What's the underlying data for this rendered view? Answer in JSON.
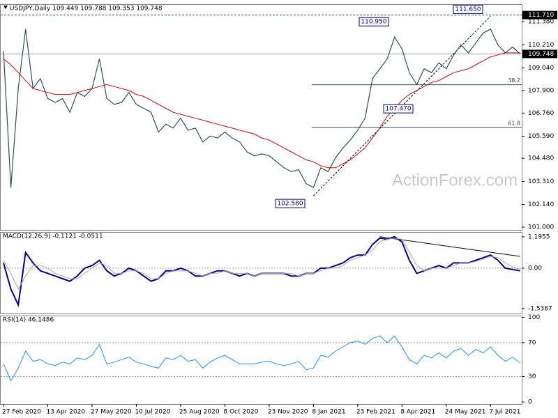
{
  "chart_data": [
    {
      "type": "line",
      "title": "USDJPY,Daily 109.449 109.788 109.353 109.748",
      "watermark": "ActionForex.com",
      "ylim": [
        100.86,
        112.26
      ],
      "yticks": [
        {
          "value": 101.0,
          "label": "101.000"
        },
        {
          "value": 102.14,
          "label": "102.140"
        },
        {
          "value": 103.31,
          "label": "103.310"
        },
        {
          "value": 104.48,
          "label": "104.480"
        },
        {
          "value": 105.59,
          "label": "105.590"
        },
        {
          "value": 106.76,
          "label": "106.760"
        },
        {
          "value": 107.9,
          "label": "107.900"
        },
        {
          "value": 109.04,
          "label": "109.040"
        },
        {
          "value": 110.21,
          "label": "110.210"
        },
        {
          "value": 111.38,
          "label": "111.380"
        }
      ],
      "series": [
        {
          "color": "#2f4f4f",
          "values": [
            109.9,
            103.0,
            108.0,
            111.0,
            108.0,
            108.5,
            107.5,
            107.3,
            107.5,
            106.8,
            107.8,
            107.6,
            108.0,
            109.5,
            107.5,
            107.2,
            107.3,
            107.8,
            107.2,
            107.0,
            106.8,
            105.8,
            106.2,
            106.0,
            106.5,
            105.9,
            106.0,
            105.3,
            105.6,
            105.5,
            105.8,
            105.5,
            105.3,
            104.8,
            104.6,
            104.7,
            104.6,
            104.3,
            104.0,
            103.8,
            103.9,
            103.2,
            103.0,
            104.0,
            103.8,
            104.5,
            105.0,
            105.4,
            105.9,
            106.5,
            108.5,
            109.0,
            109.5,
            110.6,
            110.0,
            108.8,
            108.2,
            109.0,
            108.8,
            109.3,
            109.0,
            109.7,
            110.2,
            109.8,
            110.3,
            110.8,
            111.0,
            110.2,
            109.8,
            110.1,
            109.75
          ]
        },
        {
          "color": "#e00000",
          "values": [
            109.5,
            109.2,
            108.8,
            108.4,
            108.0,
            107.9,
            107.8,
            107.7,
            107.7,
            107.7,
            107.8,
            107.9,
            108.0,
            108.1,
            108.2,
            108.1,
            108.0,
            107.9,
            107.7,
            107.6,
            107.4,
            107.2,
            107.0,
            106.8,
            106.7,
            106.6,
            106.5,
            106.4,
            106.3,
            106.2,
            106.1,
            106.0,
            105.9,
            105.8,
            105.7,
            105.5,
            105.4,
            105.2,
            105.0,
            104.8,
            104.6,
            104.4,
            104.3,
            104.1,
            104.0,
            104.0,
            104.2,
            104.4,
            104.7,
            105.0,
            105.5,
            106.0,
            106.6,
            107.0,
            107.4,
            107.7,
            107.9,
            108.1,
            108.3,
            108.4,
            108.6,
            108.8,
            108.9,
            109.0,
            109.2,
            109.4,
            109.6,
            109.7,
            109.8,
            109.8,
            109.8
          ]
        }
      ],
      "annotations": [
        {
          "value": 111.65,
          "label": "111.650"
        },
        {
          "value": 110.95,
          "label": "110.950"
        },
        {
          "value": 107.47,
          "label": "107.470"
        },
        {
          "value": 102.58,
          "label": "102.580"
        }
      ],
      "levels": [
        {
          "value": 108.19,
          "label": "38.2"
        },
        {
          "value": 106.04,
          "label": "61.8"
        }
      ],
      "price_marks": [
        {
          "value": 111.71,
          "label": "111.710"
        },
        {
          "value": 109.748,
          "label": "109.748"
        }
      ],
      "trendline": {
        "x": [
          42,
          66
        ],
        "values": [
          102.58,
          111.65
        ]
      }
    },
    {
      "type": "line",
      "title": "MACD(12,26,9) -0.1121 -0.0511",
      "ylim": [
        -1.73,
        1.38
      ],
      "yticks": [
        {
          "value": 1.1955,
          "label": "1.1955"
        },
        {
          "value": 0,
          "label": "0.00"
        },
        {
          "value": -1.5387,
          "label": "-1.5387"
        }
      ],
      "levels": [
        0
      ],
      "series": [
        {
          "color": "#00008b",
          "values": [
            0.2,
            -0.8,
            -1.4,
            0.6,
            0.2,
            -0.1,
            -0.2,
            -0.3,
            -0.4,
            -0.5,
            -0.3,
            0.0,
            0.1,
            0.3,
            -0.1,
            -0.3,
            -0.2,
            0.0,
            -0.1,
            -0.3,
            -0.5,
            -0.4,
            -0.1,
            -0.1,
            0.0,
            -0.1,
            -0.3,
            -0.3,
            -0.2,
            -0.1,
            -0.1,
            -0.2,
            -0.3,
            -0.2,
            -0.3,
            -0.2,
            -0.2,
            -0.2,
            -0.2,
            -0.3,
            -0.3,
            -0.2,
            -0.2,
            0.0,
            0.0,
            0.1,
            0.2,
            0.4,
            0.5,
            0.5,
            0.9,
            1.15,
            1.1,
            1.2,
            1.0,
            0.3,
            -0.2,
            -0.1,
            0.0,
            0.1,
            0.0,
            0.2,
            0.2,
            0.2,
            0.3,
            0.4,
            0.5,
            0.3,
            0.0,
            -0.05,
            -0.1
          ]
        },
        {
          "color": "#a9a9a9",
          "values": [
            0.3,
            -0.2,
            -0.8,
            -0.3,
            0.1,
            0.1,
            0.0,
            -0.2,
            -0.3,
            -0.4,
            -0.4,
            -0.2,
            0.0,
            0.2,
            0.1,
            -0.2,
            -0.2,
            -0.1,
            -0.1,
            -0.2,
            -0.4,
            -0.4,
            -0.2,
            -0.1,
            -0.1,
            -0.1,
            -0.2,
            -0.3,
            -0.2,
            -0.2,
            -0.1,
            -0.2,
            -0.2,
            -0.2,
            -0.3,
            -0.2,
            -0.2,
            -0.2,
            -0.2,
            -0.2,
            -0.3,
            -0.2,
            -0.2,
            -0.1,
            0.0,
            0.0,
            0.1,
            0.3,
            0.4,
            0.5,
            0.7,
            1.0,
            1.1,
            1.15,
            1.1,
            0.6,
            0.1,
            -0.1,
            0.0,
            0.0,
            0.0,
            0.1,
            0.2,
            0.2,
            0.25,
            0.35,
            0.45,
            0.4,
            0.2,
            0.05,
            -0.05
          ]
        }
      ],
      "trendline": {
        "x": [
          51,
          70
        ],
        "values": [
          1.2,
          0.45
        ]
      }
    },
    {
      "type": "line",
      "title": "RSI(14) 46.1486",
      "ylim": [
        -2.5,
        102
      ],
      "yticks": [
        0,
        30,
        70,
        100
      ],
      "levels": [
        30,
        70
      ],
      "categories": [
        "27 Feb 2020",
        null,
        null,
        null,
        null,
        null,
        "13 Apr 2020",
        null,
        null,
        null,
        null,
        null,
        "27 May 2020",
        null,
        null,
        null,
        null,
        null,
        "10 Jul 2020",
        null,
        null,
        null,
        null,
        null,
        "25 Aug 2020",
        null,
        null,
        null,
        null,
        null,
        "8 Oct 2020",
        null,
        null,
        null,
        null,
        null,
        "23 Nov 2020",
        null,
        null,
        null,
        null,
        null,
        "8 Jan 2021",
        null,
        null,
        null,
        null,
        null,
        "23 Feb 2021",
        null,
        null,
        null,
        null,
        null,
        "8 Apr 2021",
        null,
        null,
        null,
        null,
        null,
        "24 May 2021",
        null,
        null,
        null,
        null,
        null,
        "7 Jul 2021",
        null,
        null,
        null,
        null
      ],
      "series": [
        {
          "color": "#1e90ff",
          "values": [
            45,
            25,
            40,
            60,
            48,
            50,
            45,
            43,
            47,
            45,
            52,
            50,
            55,
            68,
            45,
            47,
            50,
            53,
            47,
            45,
            42,
            40,
            52,
            50,
            55,
            48,
            50,
            40,
            47,
            52,
            55,
            50,
            45,
            45,
            45,
            47,
            48,
            45,
            43,
            45,
            48,
            38,
            40,
            55,
            53,
            60,
            65,
            70,
            72,
            68,
            75,
            78,
            70,
            78,
            65,
            50,
            45,
            55,
            52,
            58,
            52,
            60,
            63,
            55,
            62,
            58,
            65,
            55,
            48,
            53,
            46
          ]
        }
      ]
    }
  ]
}
